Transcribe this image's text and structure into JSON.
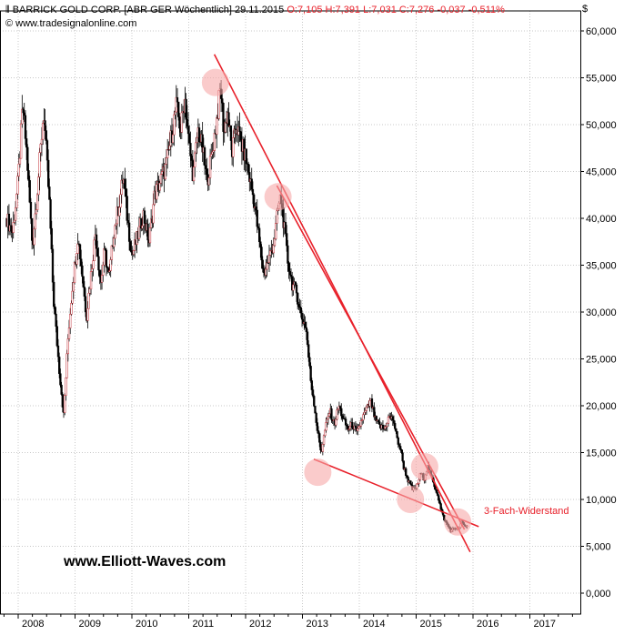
{
  "header": {
    "instrument": "BARRICK GOLD CORP. [ABR GER  Wöchentlich]",
    "date": "29.11.2015",
    "ohlc": "O:7,105  H:7,391  L:7,031  C:7,276  -0,037  -0,511%",
    "source": "© www.tradesignalonline.com",
    "icon": "candlestick-icon"
  },
  "currency_label": "$",
  "watermark": "www.Elliott-Waves.com",
  "annotation": "3-Fach-Widerstand",
  "colors": {
    "candle": "#000000",
    "trendline": "#e8202a",
    "highlight": "#f6a8a8",
    "grid": "#c8c8c8"
  },
  "chart_data": {
    "type": "candlestick",
    "ylim": [
      0,
      60
    ],
    "y_ticks": [
      "0,000",
      "5,000",
      "10,000",
      "15,000",
      "20,000",
      "25,000",
      "30,000",
      "35,000",
      "40,000",
      "45,000",
      "50,000",
      "55,000",
      "60,000"
    ],
    "x_ticks": [
      "2008",
      "2009",
      "2010",
      "2011",
      "2012",
      "2013",
      "2014",
      "2015",
      "2016",
      "2017"
    ],
    "xlim": [
      2007.77,
      2017.77
    ],
    "price_path": [
      [
        2007.8,
        40.0
      ],
      [
        2007.9,
        38.5
      ],
      [
        2008.0,
        44.0
      ],
      [
        2008.08,
        52.0
      ],
      [
        2008.15,
        47.0
      ],
      [
        2008.25,
        37.0
      ],
      [
        2008.35,
        44.0
      ],
      [
        2008.45,
        51.5
      ],
      [
        2008.55,
        41.5
      ],
      [
        2008.62,
        31.5
      ],
      [
        2008.72,
        24.0
      ],
      [
        2008.8,
        19.0
      ],
      [
        2008.88,
        27.5
      ],
      [
        2008.95,
        32.5
      ],
      [
        2009.05,
        38.0
      ],
      [
        2009.12,
        34.5
      ],
      [
        2009.2,
        29.5
      ],
      [
        2009.28,
        34.0
      ],
      [
        2009.36,
        38.5
      ],
      [
        2009.45,
        33.0
      ],
      [
        2009.52,
        36.5
      ],
      [
        2009.6,
        33.5
      ],
      [
        2009.68,
        38.5
      ],
      [
        2009.76,
        41.0
      ],
      [
        2009.85,
        44.5
      ],
      [
        2009.92,
        40.0
      ],
      [
        2010.0,
        36.0
      ],
      [
        2010.1,
        38.0
      ],
      [
        2010.2,
        40.5
      ],
      [
        2010.3,
        37.5
      ],
      [
        2010.4,
        42.5
      ],
      [
        2010.5,
        44.0
      ],
      [
        2010.6,
        45.5
      ],
      [
        2010.7,
        49.0
      ],
      [
        2010.78,
        52.0
      ],
      [
        2010.86,
        49.5
      ],
      [
        2010.93,
        53.0
      ],
      [
        2011.0,
        48.0
      ],
      [
        2011.08,
        44.5
      ],
      [
        2011.16,
        49.5
      ],
      [
        2011.24,
        47.5
      ],
      [
        2011.32,
        44.0
      ],
      [
        2011.4,
        46.5
      ],
      [
        2011.48,
        50.0
      ],
      [
        2011.56,
        54.0
      ],
      [
        2011.62,
        49.0
      ],
      [
        2011.68,
        51.5
      ],
      [
        2011.76,
        47.0
      ],
      [
        2011.84,
        50.0
      ],
      [
        2011.92,
        48.0
      ],
      [
        2012.0,
        46.5
      ],
      [
        2012.08,
        44.0
      ],
      [
        2012.16,
        41.5
      ],
      [
        2012.24,
        37.5
      ],
      [
        2012.32,
        34.0
      ],
      [
        2012.4,
        35.5
      ],
      [
        2012.5,
        37.5
      ],
      [
        2012.57,
        41.0
      ],
      [
        2012.62,
        42.3
      ],
      [
        2012.68,
        39.0
      ],
      [
        2012.74,
        35.5
      ],
      [
        2012.82,
        33.0
      ],
      [
        2012.9,
        32.0
      ],
      [
        2012.98,
        29.5
      ],
      [
        2013.06,
        28.5
      ],
      [
        2013.14,
        23.0
      ],
      [
        2013.2,
        20.5
      ],
      [
        2013.26,
        17.5
      ],
      [
        2013.33,
        15.0
      ],
      [
        2013.4,
        17.5
      ],
      [
        2013.48,
        19.5
      ],
      [
        2013.56,
        18.0
      ],
      [
        2013.64,
        20.0
      ],
      [
        2013.72,
        18.5
      ],
      [
        2013.8,
        17.5
      ],
      [
        2013.88,
        18.0
      ],
      [
        2013.96,
        17.0
      ],
      [
        2014.04,
        18.5
      ],
      [
        2014.12,
        19.5
      ],
      [
        2014.2,
        20.5
      ],
      [
        2014.28,
        18.5
      ],
      [
        2014.36,
        17.8
      ],
      [
        2014.44,
        17.5
      ],
      [
        2014.52,
        18.8
      ],
      [
        2014.6,
        18.5
      ],
      [
        2014.66,
        16.5
      ],
      [
        2014.72,
        15.5
      ],
      [
        2014.78,
        13.5
      ],
      [
        2014.86,
        12.0
      ],
      [
        2014.94,
        11.0
      ],
      [
        2015.02,
        11.5
      ],
      [
        2015.08,
        12.8
      ],
      [
        2015.14,
        12.2
      ],
      [
        2015.2,
        13.5
      ],
      [
        2015.26,
        12.5
      ],
      [
        2015.32,
        11.5
      ],
      [
        2015.38,
        10.5
      ],
      [
        2015.44,
        8.8
      ],
      [
        2015.5,
        7.8
      ],
      [
        2015.56,
        7.2
      ],
      [
        2015.62,
        6.6
      ],
      [
        2015.68,
        7.0
      ],
      [
        2015.74,
        6.8
      ],
      [
        2015.8,
        7.6
      ],
      [
        2015.86,
        7.1
      ],
      [
        2015.91,
        7.276
      ]
    ],
    "trendlines": [
      {
        "from": [
          2011.45,
          57.5
        ],
        "to": [
          2015.95,
          4.4
        ]
      },
      {
        "from": [
          2012.55,
          43.5
        ],
        "to": [
          2015.85,
          6.8
        ]
      },
      {
        "from": [
          2013.2,
          14.3
        ],
        "to": [
          2016.1,
          7.1
        ]
      }
    ],
    "highlights": [
      [
        2011.47,
        54.5
      ],
      [
        2012.57,
        42.3
      ],
      [
        2013.27,
        12.9
      ],
      [
        2014.9,
        10.0
      ],
      [
        2015.15,
        13.5
      ],
      [
        2015.73,
        7.6
      ]
    ]
  }
}
